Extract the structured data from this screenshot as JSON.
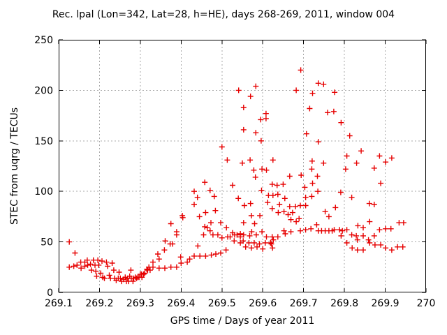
{
  "chart_data": {
    "type": "scatter",
    "title": "Rec. lpal (Lon=342, Lat=28, h=HE), days 268-269, 2011, window 004",
    "xlabel": "GPS time / Days of year 2011",
    "ylabel": "STEC from uqrg / TECUs",
    "xlim": [
      269.1,
      270
    ],
    "ylim": [
      0,
      250
    ],
    "xticks": [
      269.1,
      269.2,
      269.3,
      269.4,
      269.5,
      269.6,
      269.7,
      269.8,
      269.9,
      270
    ],
    "xtick_labels": [
      "269.1",
      "269.2",
      "269.3",
      "269.4",
      "269.5",
      "269.6",
      "269.7",
      "269.8",
      "269.9",
      "270"
    ],
    "yticks": [
      0,
      50,
      100,
      150,
      200,
      250
    ],
    "ytick_labels": [
      "0",
      "50",
      "100",
      "150",
      "200",
      "250"
    ],
    "grid": true,
    "legend": null,
    "marker": "plus",
    "marker_color": "#e60000",
    "frame_color": "#000000",
    "grid_color": "#a8a8a8",
    "points": [
      [
        269.126,
        50
      ],
      [
        269.14,
        39
      ],
      [
        269.126,
        25
      ],
      [
        269.137,
        26
      ],
      [
        269.145,
        27
      ],
      [
        269.154,
        30
      ],
      [
        269.155,
        24
      ],
      [
        269.164,
        30
      ],
      [
        269.164,
        26
      ],
      [
        269.17,
        32
      ],
      [
        269.171,
        27
      ],
      [
        269.178,
        28
      ],
      [
        269.18,
        22
      ],
      [
        269.185,
        32
      ],
      [
        269.189,
        27
      ],
      [
        269.191,
        21
      ],
      [
        269.193,
        16
      ],
      [
        269.196,
        32
      ],
      [
        269.198,
        27
      ],
      [
        269.203,
        19
      ],
      [
        269.206,
        31
      ],
      [
        269.208,
        15
      ],
      [
        269.212,
        14
      ],
      [
        269.217,
        30
      ],
      [
        269.22,
        26
      ],
      [
        269.224,
        17
      ],
      [
        269.227,
        14
      ],
      [
        269.231,
        29
      ],
      [
        269.235,
        22
      ],
      [
        269.237,
        14
      ],
      [
        269.241,
        12
      ],
      [
        269.246,
        14
      ],
      [
        269.248,
        20
      ],
      [
        269.251,
        14
      ],
      [
        269.254,
        11
      ],
      [
        269.259,
        13
      ],
      [
        269.263,
        15
      ],
      [
        269.266,
        11
      ],
      [
        269.269,
        14
      ],
      [
        269.271,
        11
      ],
      [
        269.274,
        16
      ],
      [
        269.277,
        22
      ],
      [
        269.278,
        14
      ],
      [
        269.282,
        11
      ],
      [
        269.284,
        14
      ],
      [
        269.288,
        15
      ],
      [
        269.291,
        14
      ],
      [
        269.294,
        15
      ],
      [
        269.297,
        15
      ],
      [
        269.3,
        18
      ],
      [
        269.303,
        18
      ],
      [
        269.304,
        15
      ],
      [
        269.308,
        18
      ],
      [
        269.311,
        19
      ],
      [
        269.316,
        23
      ],
      [
        269.318,
        22
      ],
      [
        269.321,
        25
      ],
      [
        269.324,
        22
      ],
      [
        269.331,
        30
      ],
      [
        269.331,
        25
      ],
      [
        269.343,
        38
      ],
      [
        269.346,
        33
      ],
      [
        269.346,
        24
      ],
      [
        269.359,
        42
      ],
      [
        269.36,
        24
      ],
      [
        269.361,
        51
      ],
      [
        269.373,
        48
      ],
      [
        269.375,
        68
      ],
      [
        269.375,
        25
      ],
      [
        269.379,
        48
      ],
      [
        269.389,
        60
      ],
      [
        269.389,
        57
      ],
      [
        269.389,
        25
      ],
      [
        269.399,
        35
      ],
      [
        269.4,
        29
      ],
      [
        269.403,
        76
      ],
      [
        269.404,
        74
      ],
      [
        269.415,
        30
      ],
      [
        269.421,
        33
      ],
      [
        269.432,
        100
      ],
      [
        269.432,
        87
      ],
      [
        269.432,
        36
      ],
      [
        269.44,
        94
      ],
      [
        269.441,
        46
      ],
      [
        269.445,
        75
      ],
      [
        269.446,
        36
      ],
      [
        269.455,
        57
      ],
      [
        269.458,
        109
      ],
      [
        269.458,
        65
      ],
      [
        269.46,
        79
      ],
      [
        269.46,
        36
      ],
      [
        269.464,
        64
      ],
      [
        269.471,
        101
      ],
      [
        269.471,
        61
      ],
      [
        269.473,
        69
      ],
      [
        269.474,
        37
      ],
      [
        269.478,
        57
      ],
      [
        269.481,
        95
      ],
      [
        269.484,
        81
      ],
      [
        269.485,
        38
      ],
      [
        269.49,
        57
      ],
      [
        269.497,
        69
      ],
      [
        269.497,
        39
      ],
      [
        269.5,
        144
      ],
      [
        269.5,
        54
      ],
      [
        269.51,
        42
      ],
      [
        269.511,
        64
      ],
      [
        269.513,
        131
      ],
      [
        269.514,
        55
      ],
      [
        269.52,
        55
      ],
      [
        269.526,
        106
      ],
      [
        269.526,
        59
      ],
      [
        269.53,
        51
      ],
      [
        269.531,
        57
      ],
      [
        269.537,
        57
      ],
      [
        269.54,
        93
      ],
      [
        269.541,
        200
      ],
      [
        269.545,
        58
      ],
      [
        269.545,
        55
      ],
      [
        269.545,
        49
      ],
      [
        269.55,
        128
      ],
      [
        269.552,
        51
      ],
      [
        269.553,
        57
      ],
      [
        269.553,
        69
      ],
      [
        269.553,
        161
      ],
      [
        269.553,
        183
      ],
      [
        269.555,
        86
      ],
      [
        269.558,
        45
      ],
      [
        269.566,
        49
      ],
      [
        269.568,
        56
      ],
      [
        269.569,
        131
      ],
      [
        269.57,
        88
      ],
      [
        269.57,
        194
      ],
      [
        269.572,
        44
      ],
      [
        269.572,
        76
      ],
      [
        269.573,
        60
      ],
      [
        269.578,
        121
      ],
      [
        269.579,
        49
      ],
      [
        269.58,
        68
      ],
      [
        269.582,
        114
      ],
      [
        269.583,
        204
      ],
      [
        269.583,
        158
      ],
      [
        269.584,
        57
      ],
      [
        269.586,
        45
      ],
      [
        269.592,
        48
      ],
      [
        269.593,
        76
      ],
      [
        269.595,
        171
      ],
      [
        269.596,
        150
      ],
      [
        269.597,
        101
      ],
      [
        269.598,
        122
      ],
      [
        269.598,
        60
      ],
      [
        269.6,
        43
      ],
      [
        269.606,
        49
      ],
      [
        269.608,
        177
      ],
      [
        269.608,
        172
      ],
      [
        269.609,
        121
      ],
      [
        269.609,
        55
      ],
      [
        269.612,
        89
      ],
      [
        269.614,
        96
      ],
      [
        269.619,
        49
      ],
      [
        269.621,
        48
      ],
      [
        269.623,
        107
      ],
      [
        269.623,
        83
      ],
      [
        269.623,
        55
      ],
      [
        269.624,
        44
      ],
      [
        269.625,
        131
      ],
      [
        269.625,
        96
      ],
      [
        269.626,
        52
      ],
      [
        269.635,
        106
      ],
      [
        269.637,
        97
      ],
      [
        269.637,
        55
      ],
      [
        269.638,
        79
      ],
      [
        269.641,
        87
      ],
      [
        269.65,
        107
      ],
      [
        269.652,
        80
      ],
      [
        269.652,
        61
      ],
      [
        269.654,
        93
      ],
      [
        269.655,
        58
      ],
      [
        269.662,
        77
      ],
      [
        269.666,
        115
      ],
      [
        269.666,
        85
      ],
      [
        269.669,
        72
      ],
      [
        269.669,
        60
      ],
      [
        269.673,
        79
      ],
      [
        269.68,
        85
      ],
      [
        269.682,
        200
      ],
      [
        269.682,
        70
      ],
      [
        269.689,
        73
      ],
      [
        269.692,
        86
      ],
      [
        269.692,
        61
      ],
      [
        269.693,
        220
      ],
      [
        269.694,
        116
      ],
      [
        269.703,
        104
      ],
      [
        269.705,
        94
      ],
      [
        269.705,
        86
      ],
      [
        269.705,
        62
      ],
      [
        269.707,
        157
      ],
      [
        269.715,
        182
      ],
      [
        269.718,
        63
      ],
      [
        269.72,
        122
      ],
      [
        269.72,
        95
      ],
      [
        269.721,
        130
      ],
      [
        269.722,
        197
      ],
      [
        269.722,
        108
      ],
      [
        269.732,
        67
      ],
      [
        269.734,
        115
      ],
      [
        269.735,
        100
      ],
      [
        269.736,
        207
      ],
      [
        269.736,
        149
      ],
      [
        269.736,
        61
      ],
      [
        269.744,
        61
      ],
      [
        269.749,
        206
      ],
      [
        269.749,
        128
      ],
      [
        269.753,
        80
      ],
      [
        269.753,
        61
      ],
      [
        269.759,
        178
      ],
      [
        269.762,
        75
      ],
      [
        269.762,
        61
      ],
      [
        269.77,
        61
      ],
      [
        269.774,
        179
      ],
      [
        269.776,
        198
      ],
      [
        269.775,
        62
      ],
      [
        269.778,
        84
      ],
      [
        269.788,
        62
      ],
      [
        269.791,
        99
      ],
      [
        269.792,
        168
      ],
      [
        269.792,
        56
      ],
      [
        269.795,
        61
      ],
      [
        269.803,
        122
      ],
      [
        269.806,
        135
      ],
      [
        269.806,
        62
      ],
      [
        269.806,
        49
      ],
      [
        269.813,
        155
      ],
      [
        269.818,
        94
      ],
      [
        269.818,
        57
      ],
      [
        269.819,
        44
      ],
      [
        269.829,
        56
      ],
      [
        269.83,
        128
      ],
      [
        269.832,
        52
      ],
      [
        269.832,
        42
      ],
      [
        269.833,
        66
      ],
      [
        269.841,
        140
      ],
      [
        269.846,
        64
      ],
      [
        269.846,
        56
      ],
      [
        269.846,
        42
      ],
      [
        269.859,
        52
      ],
      [
        269.861,
        88
      ],
      [
        269.862,
        70
      ],
      [
        269.862,
        49
      ],
      [
        269.873,
        123
      ],
      [
        269.873,
        87
      ],
      [
        269.873,
        56
      ],
      [
        269.875,
        47
      ],
      [
        269.886,
        135
      ],
      [
        269.886,
        62
      ],
      [
        269.889,
        108
      ],
      [
        269.889,
        47
      ],
      [
        269.901,
        129
      ],
      [
        269.901,
        63
      ],
      [
        269.901,
        44
      ],
      [
        269.914,
        63
      ],
      [
        269.916,
        133
      ],
      [
        269.916,
        42
      ],
      [
        269.93,
        45
      ],
      [
        269.934,
        69
      ],
      [
        269.943,
        45
      ],
      [
        269.945,
        69
      ]
    ]
  }
}
